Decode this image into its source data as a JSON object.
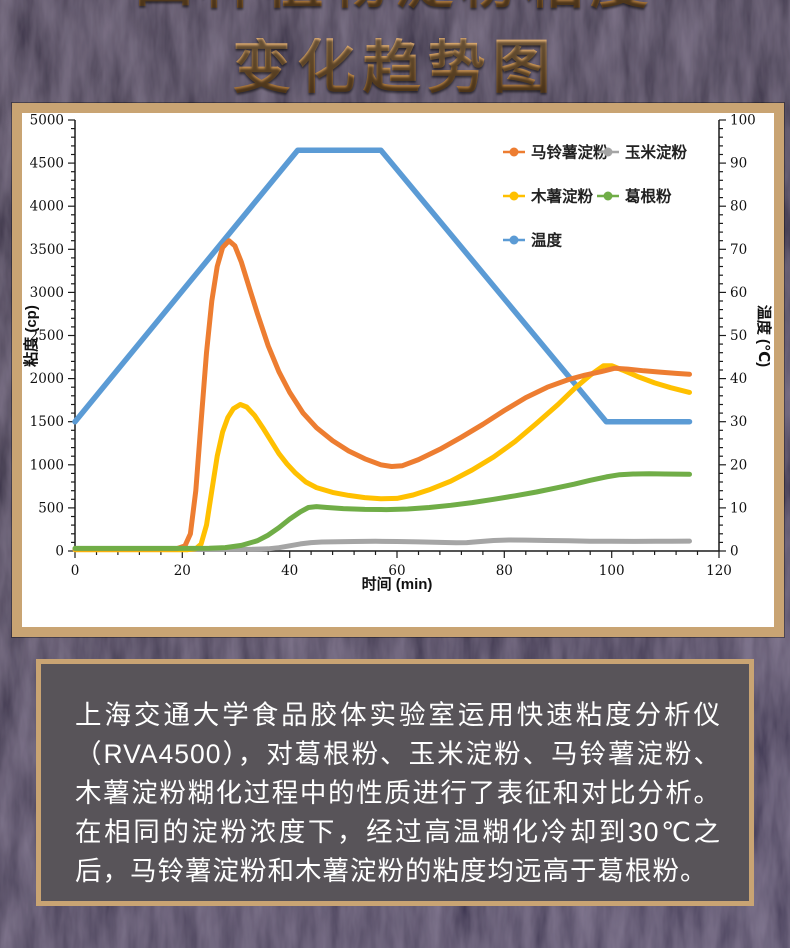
{
  "page": {
    "title_line1": "四种植物淀粉粘度",
    "title_line2": "变化趋势图"
  },
  "theme": {
    "frame_color": "#c9a473",
    "panel_bg": "#585459",
    "chart_bg": "#ffffff",
    "title_color": "#c08a4f"
  },
  "chart_data": {
    "type": "line",
    "title": "",
    "xlabel": "时间 (min)",
    "ylabel_left": "粘度 (cp)",
    "ylabel_right": "温度 (℃)",
    "x_range": [
      0,
      120
    ],
    "x_major": 20,
    "x_minor": 4,
    "y_left_range": [
      0,
      5000
    ],
    "y_left_major": 500,
    "y_left_minor": 100,
    "y_right_range": [
      0,
      100
    ],
    "y_right_major": 10,
    "y_right_minor": 2,
    "grid": false,
    "legend_position": "top-right",
    "draw_order": [
      "temperature",
      "corn",
      "tapioca",
      "potato",
      "kudzu"
    ],
    "series": [
      {
        "key": "potato",
        "name": "马铃薯淀粉",
        "color": "#ED7D31",
        "axis": "left",
        "points": [
          [
            0,
            25
          ],
          [
            14,
            25
          ],
          [
            19,
            28
          ],
          [
            20.5,
            60
          ],
          [
            21.5,
            200
          ],
          [
            22.5,
            700
          ],
          [
            23.5,
            1500
          ],
          [
            24.5,
            2300
          ],
          [
            25.5,
            2900
          ],
          [
            26.5,
            3300
          ],
          [
            27.5,
            3520
          ],
          [
            28.7,
            3600
          ],
          [
            29.8,
            3540
          ],
          [
            31,
            3350
          ],
          [
            32.5,
            3050
          ],
          [
            34,
            2750
          ],
          [
            36,
            2380
          ],
          [
            38,
            2080
          ],
          [
            40,
            1840
          ],
          [
            42.5,
            1600
          ],
          [
            45,
            1430
          ],
          [
            48,
            1280
          ],
          [
            51,
            1160
          ],
          [
            54,
            1070
          ],
          [
            57,
            1000
          ],
          [
            59,
            980
          ],
          [
            61,
            990
          ],
          [
            64,
            1060
          ],
          [
            68,
            1180
          ],
          [
            72,
            1320
          ],
          [
            76,
            1470
          ],
          [
            80,
            1630
          ],
          [
            84,
            1780
          ],
          [
            88,
            1900
          ],
          [
            92,
            1990
          ],
          [
            95,
            2040
          ],
          [
            98,
            2080
          ],
          [
            100.5,
            2120
          ],
          [
            103,
            2110
          ],
          [
            106,
            2090
          ],
          [
            109,
            2075
          ],
          [
            112,
            2060
          ],
          [
            114.5,
            2050
          ]
        ]
      },
      {
        "key": "corn",
        "name": "玉米淀粉",
        "color": "#A5A5A5",
        "axis": "left",
        "points": [
          [
            0,
            18
          ],
          [
            10,
            18
          ],
          [
            20,
            18
          ],
          [
            28,
            18
          ],
          [
            33,
            20
          ],
          [
            36,
            26
          ],
          [
            38,
            38
          ],
          [
            40,
            60
          ],
          [
            42,
            82
          ],
          [
            44,
            97
          ],
          [
            46,
            104
          ],
          [
            49,
            108
          ],
          [
            52,
            110
          ],
          [
            56,
            112
          ],
          [
            60,
            110
          ],
          [
            64,
            105
          ],
          [
            68,
            100
          ],
          [
            71,
            96
          ],
          [
            73,
            97
          ],
          [
            75,
            108
          ],
          [
            78,
            122
          ],
          [
            81,
            128
          ],
          [
            84,
            126
          ],
          [
            88,
            122
          ],
          [
            92,
            118
          ],
          [
            96,
            114
          ],
          [
            100,
            112
          ],
          [
            104,
            111
          ],
          [
            108,
            112
          ],
          [
            111,
            114
          ],
          [
            114.5,
            115
          ]
        ]
      },
      {
        "key": "tapioca",
        "name": "木薯淀粉",
        "color": "#FFC000",
        "axis": "left",
        "points": [
          [
            0,
            15
          ],
          [
            15,
            15
          ],
          [
            21,
            15
          ],
          [
            22.5,
            25
          ],
          [
            23.5,
            80
          ],
          [
            24.5,
            300
          ],
          [
            25.5,
            700
          ],
          [
            26.5,
            1100
          ],
          [
            27.5,
            1380
          ],
          [
            28.5,
            1550
          ],
          [
            29.5,
            1650
          ],
          [
            30.8,
            1700
          ],
          [
            32,
            1670
          ],
          [
            33.5,
            1570
          ],
          [
            35,
            1430
          ],
          [
            36.5,
            1280
          ],
          [
            38,
            1130
          ],
          [
            39.5,
            1010
          ],
          [
            41,
            910
          ],
          [
            43,
            800
          ],
          [
            45,
            735
          ],
          [
            48,
            680
          ],
          [
            51,
            645
          ],
          [
            54,
            620
          ],
          [
            57,
            605
          ],
          [
            60,
            610
          ],
          [
            63,
            650
          ],
          [
            66,
            710
          ],
          [
            70,
            810
          ],
          [
            74,
            940
          ],
          [
            78,
            1090
          ],
          [
            82,
            1270
          ],
          [
            86,
            1480
          ],
          [
            90,
            1700
          ],
          [
            93,
            1880
          ],
          [
            96,
            2040
          ],
          [
            98.5,
            2150
          ],
          [
            100,
            2150
          ],
          [
            102,
            2100
          ],
          [
            105,
            2020
          ],
          [
            108,
            1950
          ],
          [
            111,
            1895
          ],
          [
            114.5,
            1840
          ]
        ]
      },
      {
        "key": "kudzu",
        "name": "葛根粉",
        "color": "#70AD47",
        "axis": "left",
        "points": [
          [
            0,
            30
          ],
          [
            10,
            30
          ],
          [
            20,
            30
          ],
          [
            25,
            33
          ],
          [
            28,
            40
          ],
          [
            31,
            65
          ],
          [
            34,
            120
          ],
          [
            36,
            185
          ],
          [
            38,
            270
          ],
          [
            40,
            370
          ],
          [
            42,
            455
          ],
          [
            43.5,
            505
          ],
          [
            45,
            515
          ],
          [
            47,
            505
          ],
          [
            50,
            492
          ],
          [
            54,
            483
          ],
          [
            58,
            480
          ],
          [
            62,
            487
          ],
          [
            66,
            505
          ],
          [
            70,
            530
          ],
          [
            74,
            562
          ],
          [
            78,
            600
          ],
          [
            82,
            640
          ],
          [
            86,
            685
          ],
          [
            90,
            735
          ],
          [
            93,
            775
          ],
          [
            96,
            820
          ],
          [
            99,
            860
          ],
          [
            101.5,
            885
          ],
          [
            104,
            893
          ],
          [
            107,
            896
          ],
          [
            110,
            893
          ],
          [
            114.5,
            890
          ]
        ]
      },
      {
        "key": "temperature",
        "name": "温度",
        "color": "#5B9BD5",
        "axis": "right",
        "points": [
          [
            0,
            30
          ],
          [
            41.5,
            93
          ],
          [
            57,
            93
          ],
          [
            99,
            30
          ],
          [
            114.5,
            30
          ]
        ]
      }
    ]
  },
  "description": {
    "text": "上海交通大学食品胶体实验室运用快速粘度分析仪（RVA4500），对葛根粉、玉米淀粉、马铃薯淀粉、木薯淀粉糊化过程中的性质进行了表征和对比分析。在相同的淀粉浓度下，经过高温糊化冷却到30℃之后，马铃薯淀粉和木薯淀粉的粘度均远高于葛根粉。"
  }
}
